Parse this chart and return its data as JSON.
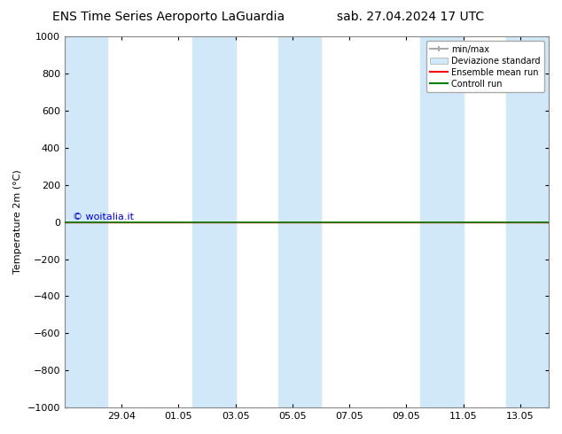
{
  "title_left": "ENS Time Series Aeroporto LaGuardia",
  "title_right": "sab. 27.04.2024 17 UTC",
  "ylabel": "Temperature 2m (°C)",
  "watermark": "© woitalia.it",
  "watermark_color": "#0000cc",
  "ylim_bottom": -1000,
  "ylim_top": 1000,
  "yticks": [
    -1000,
    -800,
    -600,
    -400,
    -200,
    0,
    200,
    400,
    600,
    800,
    1000
  ],
  "xtick_labels": [
    "29.04",
    "01.05",
    "03.05",
    "05.05",
    "07.05",
    "09.05",
    "11.05",
    "13.05"
  ],
  "xtick_positions": [
    2,
    4,
    6,
    8,
    10,
    12,
    14,
    16
  ],
  "x_min": 0,
  "x_max": 17,
  "background_color": "#ffffff",
  "plot_bg_color": "#ffffff",
  "shaded_regions": [
    [
      0.0,
      1.5
    ],
    [
      4.5,
      6.0
    ],
    [
      7.5,
      9.0
    ],
    [
      12.5,
      14.0
    ],
    [
      15.5,
      17.0
    ]
  ],
  "std_color": "#d0e8f8",
  "ensemble_mean_color": "#ff0000",
  "control_run_color": "#008000",
  "minmax_color": "#aaaaaa",
  "legend_items": [
    "min/max",
    "Deviazione standard",
    "Ensemble mean run",
    "Controll run"
  ],
  "font_size": 8,
  "title_font_size": 10
}
